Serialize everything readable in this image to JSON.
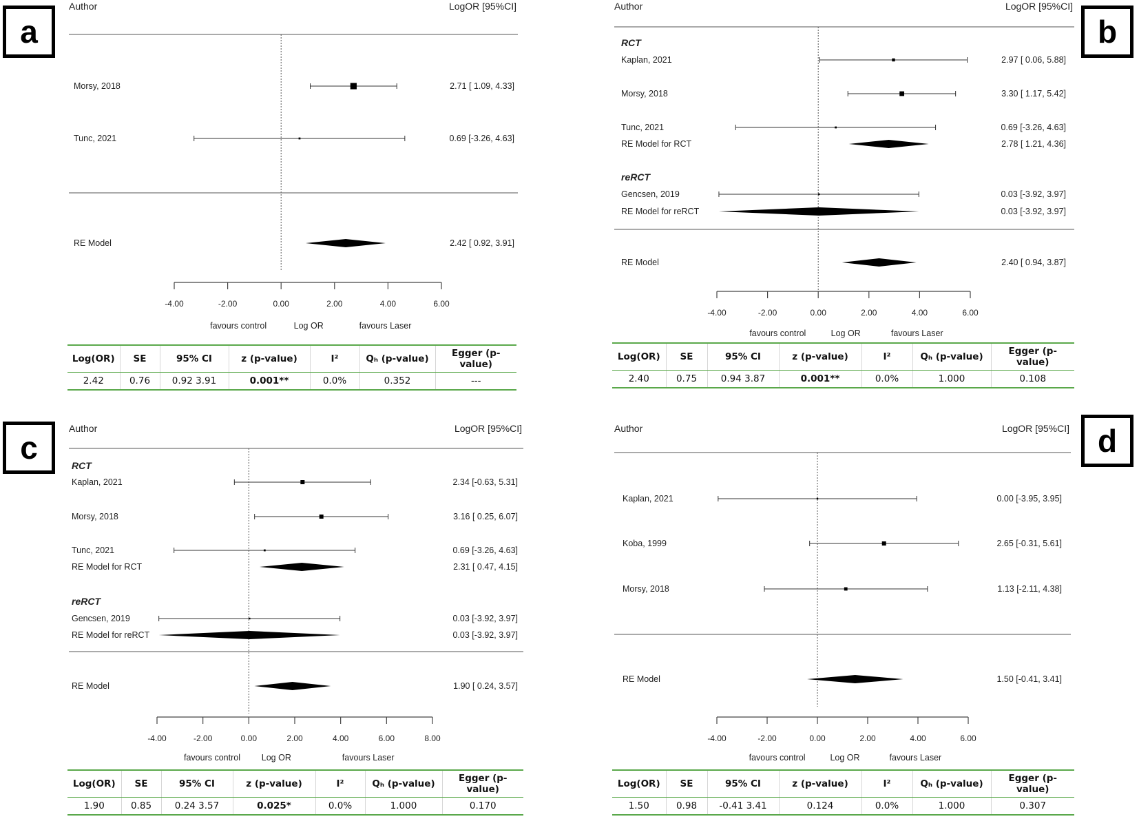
{
  "figure": {
    "panels": [
      {
        "label": "a",
        "header_left": "Author",
        "header_right": "LogOR [95%CI]",
        "axis_title": "Log OR",
        "favours_left": "favours control",
        "favours_right": "favours Laser",
        "stats_table": {
          "columns": [
            "Log(OR)",
            "SE",
            "95% CI",
            "z (p-value)",
            "I²",
            "Qₕ (p-value)",
            "Egger (p-value)"
          ],
          "values": [
            "2.42",
            "0.76",
            "0.92 3.91",
            "0.001**",
            "0.0%",
            "0.352",
            "---"
          ]
        }
      },
      {
        "label": "b",
        "header_left": "Author",
        "header_right": "LogOR [95%CI]",
        "axis_title": "Log OR",
        "favours_left": "favours control",
        "favours_right": "favours Laser",
        "stats_table": {
          "columns": [
            "Log(OR)",
            "SE",
            "95% CI",
            "z (p-value)",
            "I²",
            "Qₕ (p-value)",
            "Egger (p-value)"
          ],
          "values": [
            "2.40",
            "0.75",
            "0.94 3.87",
            "0.001**",
            "0.0%",
            "1.000",
            "0.108"
          ]
        }
      },
      {
        "label": "c",
        "header_left": "Author",
        "header_right": "LogOR [95%CI]",
        "axis_title": "Log OR",
        "favours_left": "favours control",
        "favours_right": "favours Laser",
        "stats_table": {
          "columns": [
            "Log(OR)",
            "SE",
            "95% CI",
            "z (p-value)",
            "I²",
            "Qₕ (p-value)",
            "Egger (p-value)"
          ],
          "values": [
            "1.90",
            "0.85",
            "0.24 3.57",
            "0.025*",
            "0.0%",
            "1.000",
            "0.170"
          ]
        }
      },
      {
        "label": "d",
        "header_left": "Author",
        "header_right": "LogOR [95%CI]",
        "axis_title": "Log OR",
        "favours_left": "favours control",
        "favours_right": "favours Laser",
        "stats_table": {
          "columns": [
            "Log(OR)",
            "SE",
            "95% CI",
            "z (p-value)",
            "I²",
            "Qₕ (p-value)",
            "Egger (p-value)"
          ],
          "values": [
            "1.50",
            "0.98",
            "-0.41 3.41",
            "0.124",
            "0.0%",
            "1.000",
            "0.307"
          ]
        }
      }
    ]
  },
  "chart_data": [
    {
      "type": "forest",
      "panel": "a",
      "xlim": [
        -4,
        6
      ],
      "xticks": [
        -4,
        -2,
        0,
        2,
        4,
        6
      ],
      "tick_labels": [
        "-4.00",
        "-2.00",
        "0.00",
        "2.00",
        "4.00",
        "6.00"
      ],
      "rows": [
        {
          "kind": "study",
          "label": "Morsy, 2018",
          "est": 2.71,
          "lo": 1.09,
          "hi": 4.33,
          "weight": 0.9,
          "text": "2.71 [ 1.09, 4.33]"
        },
        {
          "kind": "study",
          "label": "Tunc, 2021",
          "est": 0.69,
          "lo": -3.26,
          "hi": 4.63,
          "weight": 0.1,
          "text": "0.69 [-3.26, 4.63]"
        },
        {
          "kind": "rule"
        },
        {
          "kind": "summary",
          "label": "RE Model",
          "est": 2.42,
          "lo": 0.92,
          "hi": 3.91,
          "text": "2.42 [ 0.92, 3.91]"
        }
      ]
    },
    {
      "type": "forest",
      "panel": "b",
      "xlim": [
        -4,
        6
      ],
      "xticks": [
        -4,
        -2,
        0,
        2,
        4,
        6
      ],
      "tick_labels": [
        "-4.00",
        "-2.00",
        "0.00",
        "2.00",
        "4.00",
        "6.00"
      ],
      "rows": [
        {
          "kind": "group",
          "label": "RCT"
        },
        {
          "kind": "study",
          "label": "Kaplan, 2021",
          "est": 2.97,
          "lo": 0.06,
          "hi": 5.88,
          "weight": 0.3,
          "text": "2.97 [ 0.06, 5.88]"
        },
        {
          "kind": "study",
          "label": "Morsy, 2018",
          "est": 3.3,
          "lo": 1.17,
          "hi": 5.42,
          "weight": 0.6,
          "text": "3.30 [ 1.17, 5.42]"
        },
        {
          "kind": "study",
          "label": "Tunc, 2021",
          "est": 0.69,
          "lo": -3.26,
          "hi": 4.63,
          "weight": 0.1,
          "text": "0.69 [-3.26, 4.63]"
        },
        {
          "kind": "summary",
          "label": "RE Model for RCT",
          "est": 2.78,
          "lo": 1.21,
          "hi": 4.36,
          "text": "2.78 [ 1.21, 4.36]"
        },
        {
          "kind": "group",
          "label": "reRCT"
        },
        {
          "kind": "study",
          "label": "Gencsen, 2019",
          "est": 0.03,
          "lo": -3.92,
          "hi": 3.97,
          "weight": 0.05,
          "text": "0.03 [-3.92, 3.97]"
        },
        {
          "kind": "summary",
          "label": "RE Model for reRCT",
          "est": 0.03,
          "lo": -3.92,
          "hi": 3.97,
          "text": "0.03 [-3.92, 3.97]"
        },
        {
          "kind": "rule"
        },
        {
          "kind": "summary",
          "label": "RE Model",
          "est": 2.4,
          "lo": 0.94,
          "hi": 3.87,
          "text": "2.40 [ 0.94, 3.87]"
        }
      ]
    },
    {
      "type": "forest",
      "panel": "c",
      "xlim": [
        -4,
        8
      ],
      "xticks": [
        -4,
        -2,
        0,
        2,
        4,
        6,
        8
      ],
      "tick_labels": [
        "-4.00",
        "-2.00",
        "0.00",
        "2.00",
        "4.00",
        "6.00",
        "8.00"
      ],
      "rows": [
        {
          "kind": "group",
          "label": "RCT"
        },
        {
          "kind": "study",
          "label": "Kaplan, 2021",
          "est": 2.34,
          "lo": -0.63,
          "hi": 5.31,
          "weight": 0.5,
          "text": "2.34 [-0.63, 5.31]"
        },
        {
          "kind": "study",
          "label": "Morsy, 2018",
          "est": 3.16,
          "lo": 0.25,
          "hi": 6.07,
          "weight": 0.5,
          "text": "3.16 [ 0.25, 6.07]"
        },
        {
          "kind": "study",
          "label": "Tunc, 2021",
          "est": 0.69,
          "lo": -3.26,
          "hi": 4.63,
          "weight": 0.1,
          "text": "0.69 [-3.26, 4.63]"
        },
        {
          "kind": "summary",
          "label": "RE Model for RCT",
          "est": 2.31,
          "lo": 0.47,
          "hi": 4.15,
          "text": "2.31 [ 0.47, 4.15]"
        },
        {
          "kind": "group",
          "label": "reRCT"
        },
        {
          "kind": "study",
          "label": "Gencsen, 2019",
          "est": 0.03,
          "lo": -3.92,
          "hi": 3.97,
          "weight": 0.05,
          "text": "0.03 [-3.92, 3.97]"
        },
        {
          "kind": "summary",
          "label": "RE Model for reRCT",
          "est": 0.03,
          "lo": -3.92,
          "hi": 3.97,
          "text": "0.03 [-3.92, 3.97]"
        },
        {
          "kind": "rule"
        },
        {
          "kind": "summary",
          "label": "RE Model",
          "est": 1.9,
          "lo": 0.24,
          "hi": 3.57,
          "text": "1.90 [ 0.24, 3.57]"
        }
      ]
    },
    {
      "type": "forest",
      "panel": "d",
      "xlim": [
        -4,
        6
      ],
      "xticks": [
        -4,
        -2,
        0,
        2,
        4,
        6
      ],
      "tick_labels": [
        "-4.00",
        "-2.00",
        "0.00",
        "2.00",
        "4.00",
        "6.00"
      ],
      "rows": [
        {
          "kind": "study",
          "label": "Kaplan, 2021",
          "est": 0.0,
          "lo": -3.95,
          "hi": 3.95,
          "weight": 0.05,
          "text": "0.00 [-3.95, 3.95]"
        },
        {
          "kind": "study",
          "label": "Koba, 1999",
          "est": 2.65,
          "lo": -0.31,
          "hi": 5.61,
          "weight": 0.5,
          "text": "2.65 [-0.31, 5.61]"
        },
        {
          "kind": "study",
          "label": "Morsy, 2018",
          "est": 1.13,
          "lo": -2.11,
          "hi": 4.38,
          "weight": 0.35,
          "text": "1.13 [-2.11, 4.38]"
        },
        {
          "kind": "rule"
        },
        {
          "kind": "summary",
          "label": "RE Model",
          "est": 1.5,
          "lo": -0.41,
          "hi": 3.41,
          "text": "1.50 [-0.41, 3.41]"
        }
      ]
    }
  ]
}
